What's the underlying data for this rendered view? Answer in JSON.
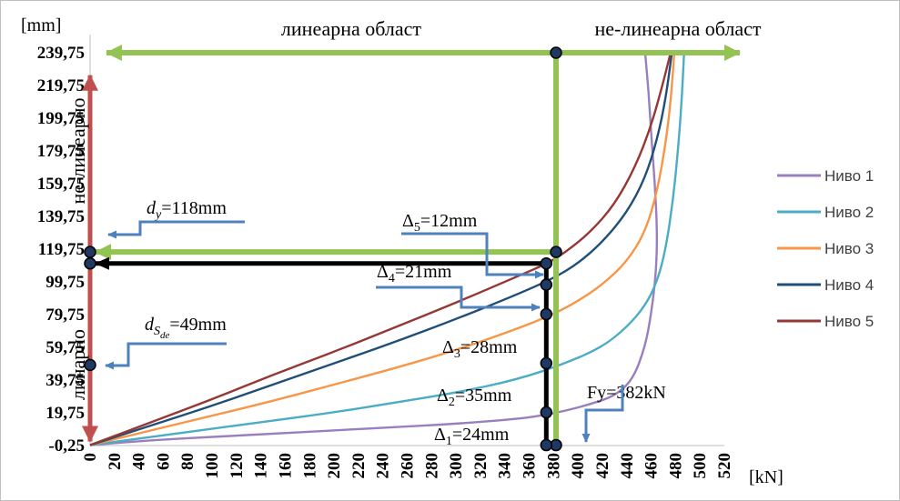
{
  "chart_data": {
    "type": "line",
    "ylabel": "[mm]",
    "xlabel": "[kN]",
    "xlim": [
      0,
      520
    ],
    "ylim": [
      -0.25,
      239.75
    ],
    "x_ticks": [
      "0",
      "20",
      "40",
      "60",
      "80",
      "100",
      "120",
      "140",
      "160",
      "180",
      "200",
      "220",
      "240",
      "260",
      "280",
      "300",
      "320",
      "340",
      "360",
      "380",
      "400",
      "420",
      "440",
      "460",
      "480",
      "500",
      "520"
    ],
    "y_ticks": [
      "-0,25",
      "19,75",
      "39,75",
      "59,75",
      "79,75",
      "99,75",
      "119,75",
      "139,75",
      "159,75",
      "179,75",
      "199,75",
      "219,75",
      "239,75"
    ],
    "series": [
      {
        "name": "Ниво 1",
        "color": "#9a7fbf",
        "points": [
          [
            0,
            0
          ],
          [
            50,
            3
          ],
          [
            100,
            5
          ],
          [
            150,
            7
          ],
          [
            200,
            9
          ],
          [
            250,
            11
          ],
          [
            300,
            13
          ],
          [
            350,
            16
          ],
          [
            370,
            18
          ],
          [
            390,
            21
          ],
          [
            410,
            25
          ],
          [
            430,
            30
          ],
          [
            445,
            40
          ],
          [
            455,
            60
          ],
          [
            460,
            80
          ],
          [
            464,
            105
          ],
          [
            465,
            130
          ],
          [
            463,
            160
          ],
          [
            460,
            190
          ],
          [
            458,
            215
          ],
          [
            455,
            240
          ]
        ]
      },
      {
        "name": "Ниво 2",
        "color": "#4bacc6",
        "points": [
          [
            0,
            0
          ],
          [
            50,
            5
          ],
          [
            100,
            10
          ],
          [
            150,
            15
          ],
          [
            200,
            20
          ],
          [
            250,
            26
          ],
          [
            300,
            32
          ],
          [
            350,
            40
          ],
          [
            390,
            50
          ],
          [
            420,
            60
          ],
          [
            440,
            72
          ],
          [
            455,
            85
          ],
          [
            465,
            100
          ],
          [
            472,
            120
          ],
          [
            478,
            150
          ],
          [
            482,
            180
          ],
          [
            485,
            210
          ],
          [
            487,
            240
          ]
        ]
      },
      {
        "name": "Ниво 3",
        "color": "#f79646",
        "points": [
          [
            0,
            0
          ],
          [
            50,
            9
          ],
          [
            100,
            18
          ],
          [
            150,
            27
          ],
          [
            200,
            37
          ],
          [
            250,
            47
          ],
          [
            300,
            58
          ],
          [
            350,
            71
          ],
          [
            380,
            80
          ],
          [
            400,
            88
          ],
          [
            420,
            98
          ],
          [
            440,
            112
          ],
          [
            455,
            130
          ],
          [
            465,
            155
          ],
          [
            472,
            185
          ],
          [
            476,
            210
          ],
          [
            479,
            240
          ]
        ]
      },
      {
        "name": "Ниво 4",
        "color": "#1f4e79",
        "points": [
          [
            0,
            0
          ],
          [
            50,
            12
          ],
          [
            100,
            24
          ],
          [
            150,
            37
          ],
          [
            200,
            50
          ],
          [
            250,
            63
          ],
          [
            300,
            77
          ],
          [
            350,
            92
          ],
          [
            380,
            102
          ],
          [
            400,
            111
          ],
          [
            420,
            124
          ],
          [
            440,
            142
          ],
          [
            455,
            163
          ],
          [
            465,
            187
          ],
          [
            472,
            212
          ],
          [
            477,
            240
          ]
        ]
      },
      {
        "name": "Ниво 5",
        "color": "#953735",
        "points": [
          [
            0,
            0
          ],
          [
            50,
            14
          ],
          [
            100,
            28
          ],
          [
            150,
            43
          ],
          [
            200,
            57
          ],
          [
            250,
            72
          ],
          [
            300,
            87
          ],
          [
            350,
            103
          ],
          [
            375,
            111
          ],
          [
            390,
            118
          ],
          [
            410,
            130
          ],
          [
            430,
            147
          ],
          [
            447,
            170
          ],
          [
            460,
            195
          ],
          [
            470,
            222
          ],
          [
            476,
            240
          ]
        ]
      }
    ],
    "annotations": {
      "linear_region": "линеарна област",
      "nonlinear_region": "не-линеарна област",
      "vertical_linear": "линарно",
      "vertical_nonlinear": "не-линеарно",
      "dy": {
        "sym": "d",
        "sub": "y",
        "text": "=118mm"
      },
      "dsde": {
        "sym": "d",
        "sub": "S",
        "subsub": "de",
        "text": "=49mm"
      },
      "delta5": {
        "sym": "Δ",
        "sub": "5",
        "text": "=12mm"
      },
      "delta4": {
        "sym": "Δ",
        "sub": "4",
        "text": "=21mm"
      },
      "delta3": {
        "sym": "Δ",
        "sub": "3",
        "text": "=28mm"
      },
      "delta2": {
        "sym": "Δ",
        "sub": "2",
        "text": "=35mm"
      },
      "delta1": {
        "sym": "Δ",
        "sub": "1",
        "text": "=24mm"
      },
      "fy": "Fy=382kN"
    },
    "markers": {
      "dy_value": 118,
      "dsde_value": 49,
      "fy_value": 382,
      "fy_top": 239.75,
      "design_x": 374,
      "black_levels": [
        0,
        20,
        50,
        80,
        98,
        111
      ],
      "level_111": 111
    },
    "legend_position": "right",
    "colors": {
      "green": "#92c353",
      "red": "#c0504d",
      "black": "#000000",
      "callout": "#4f81bd"
    },
    "grid": false
  }
}
